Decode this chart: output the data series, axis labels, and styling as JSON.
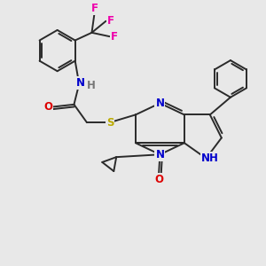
{
  "bg_color": "#e8e8e8",
  "bond_color": "#2a2a2a",
  "bond_width": 1.4,
  "atom_colors": {
    "N": "#0000cc",
    "O": "#dd0000",
    "S": "#bbaa00",
    "F": "#ee00aa",
    "H_gray": "#777777",
    "C": "#2a2a2a"
  },
  "font_size": 8.5
}
